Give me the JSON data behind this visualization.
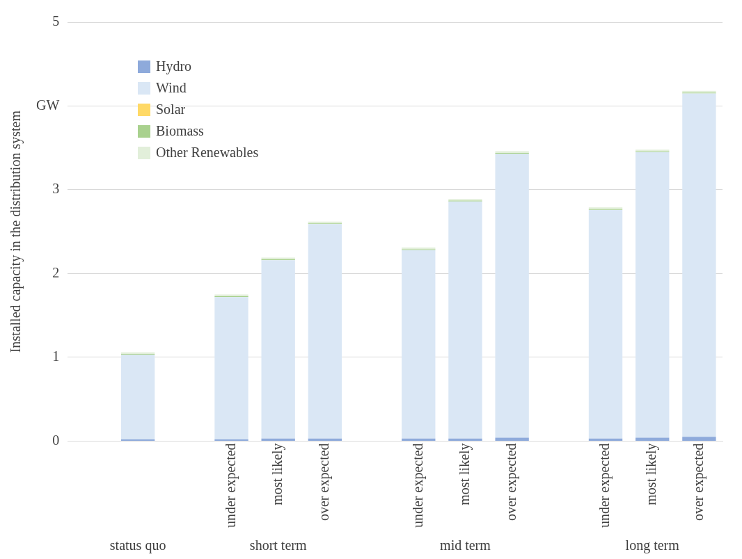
{
  "chart_data": {
    "type": "bar",
    "stacked": true,
    "ylabel": "Installed capacity in the distribution system",
    "categories": [
      null,
      null,
      null,
      "under expected",
      "most likely",
      "over expected",
      null,
      "under expected",
      "most likely",
      "over expected",
      null,
      "under expected",
      "most likely",
      "over expected"
    ],
    "series": [
      {
        "name": "Hydro",
        "color": "#8eaadb",
        "values": [
          null,
          0.02,
          null,
          0.02,
          0.03,
          0.03,
          null,
          0.03,
          0.03,
          0.04,
          null,
          0.03,
          0.04,
          0.05
        ]
      },
      {
        "name": "Wind",
        "color": "#dae7f5",
        "values": [
          null,
          1.01,
          null,
          1.7,
          2.13,
          2.56,
          null,
          2.25,
          2.83,
          3.39,
          null,
          2.73,
          3.41,
          4.1
        ]
      },
      {
        "name": "Solar",
        "color": "#ffd966",
        "values": [
          null,
          0,
          null,
          0,
          0,
          0,
          null,
          0,
          0,
          0,
          null,
          0,
          0,
          0
        ]
      },
      {
        "name": "Biomass",
        "color": "#a9d18e",
        "values": [
          null,
          0.01,
          null,
          0.01,
          0.01,
          0.01,
          null,
          0.01,
          0.01,
          0.01,
          null,
          0.01,
          0.01,
          0.01
        ]
      },
      {
        "name": "Other Renewables",
        "color": "#e2efda",
        "values": [
          null,
          0.02,
          null,
          0.02,
          0.02,
          0.02,
          null,
          0.02,
          0.02,
          0.02,
          null,
          0.02,
          0.02,
          0.02
        ]
      }
    ],
    "ylim": [
      0,
      5
    ],
    "yticks": [
      0,
      1,
      2,
      3,
      {
        "value": 4,
        "label": "GW"
      },
      5
    ],
    "grid": "y",
    "legend": "top left",
    "annotations": [
      "status quo",
      "short term",
      "mid term",
      "long term"
    ]
  }
}
